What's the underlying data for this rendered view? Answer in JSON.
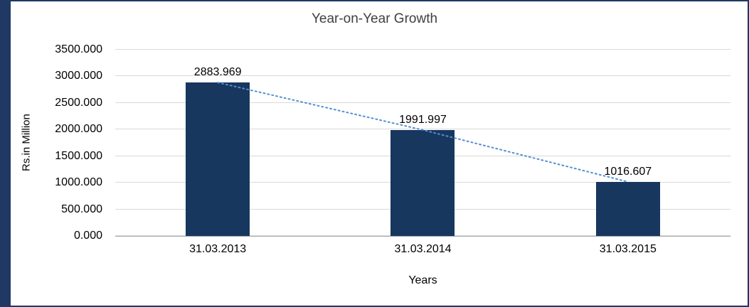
{
  "frame": {
    "accent_color": "#1F3864",
    "background_color": "#FFFFFF"
  },
  "chart_data": {
    "type": "bar",
    "title": "Year-on-Year Growth",
    "xlabel": "Years",
    "ylabel": "Rs.in Million",
    "categories": [
      "31.03.2013",
      "31.03.2014",
      "31.03.2015"
    ],
    "values": [
      2883.969,
      1991.997,
      1016.607
    ],
    "data_labels": [
      "2883.969",
      "1991.997",
      "1016.607"
    ],
    "ylim": [
      0,
      3500
    ],
    "ytick_step": 500,
    "ytick_labels": [
      "0.000",
      "500.000",
      "1000.000",
      "1500.000",
      "2000.000",
      "2500.000",
      "3000.000",
      "3500.000"
    ],
    "grid": true,
    "legend": "none",
    "bar_color": "#17375E",
    "grid_color": "#D9D9D9",
    "axis_color": "#A6A6A6",
    "title_color": "#404040",
    "trendline": {
      "style": "dotted",
      "color": "#558ED5"
    }
  }
}
